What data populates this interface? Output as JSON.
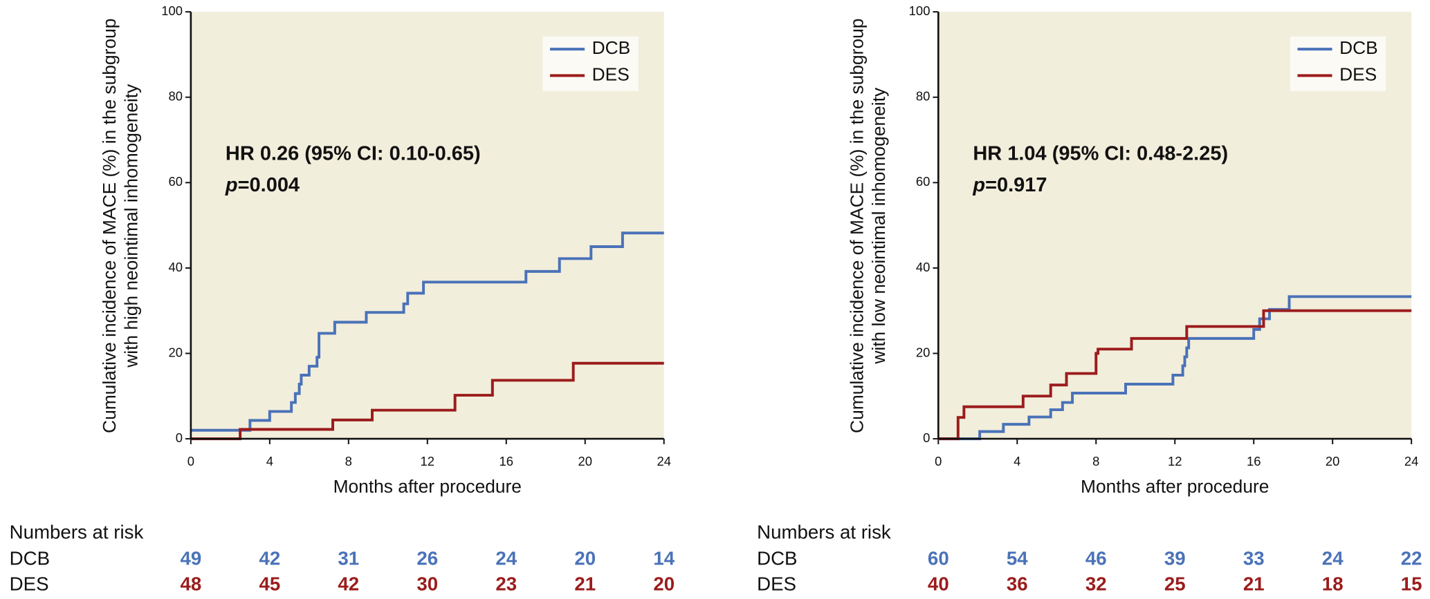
{
  "chart_data": [
    {
      "type": "line",
      "step": true,
      "legend": "upper right",
      "background": "#f2eedc",
      "y_label": [
        "Cumulative incidence of MACE (%) in the subgroup",
        "with high neointimal inhomogeneity"
      ],
      "x_label": "Months after procedure",
      "xlim": [
        0,
        24
      ],
      "xticks": [
        0,
        4,
        8,
        12,
        16,
        20,
        24
      ],
      "ylim": [
        0,
        100
      ],
      "yticks": [
        0,
        20,
        40,
        60,
        80,
        100
      ],
      "series": [
        {
          "name": "DCB",
          "color": "#4a72b8",
          "x": [
            0,
            3.0,
            4.0,
            5.1,
            5.3,
            5.5,
            5.6,
            6.0,
            6.4,
            6.5,
            7.3,
            8.9,
            10.8,
            11.0,
            11.8,
            17.0,
            18.7,
            20.3,
            21.9,
            24
          ],
          "values": [
            2.0,
            4.3,
            6.4,
            8.5,
            10.6,
            12.8,
            14.9,
            17.0,
            19.1,
            24.7,
            27.3,
            29.6,
            31.6,
            34.1,
            36.7,
            39.2,
            42.2,
            45.0,
            48.2,
            48.2
          ]
        },
        {
          "name": "DES",
          "color": "#9b1c1c",
          "x": [
            0,
            2.5,
            7.2,
            9.2,
            13.4,
            15.3,
            19.4,
            24
          ],
          "values": [
            0,
            2.2,
            4.4,
            6.7,
            10.2,
            13.7,
            17.7,
            17.7
          ]
        }
      ],
      "annotation": {
        "hr": "HR 0.26 (95% CI: 0.10-0.65)",
        "p_symbol": "p",
        "p_text": "=0.004"
      },
      "risk_table": {
        "title": "Numbers at risk",
        "rows": [
          {
            "name": "DCB",
            "color": "#4a72b8",
            "values": [
              49,
              42,
              31,
              26,
              24,
              20,
              14
            ]
          },
          {
            "name": "DES",
            "color": "#9b1c1c",
            "values": [
              48,
              45,
              42,
              30,
              23,
              21,
              20
            ]
          }
        ]
      }
    },
    {
      "type": "line",
      "step": true,
      "legend": "upper right",
      "background": "#f2eedc",
      "y_label": [
        "Cumulative incidence of MACE (%) in the subgroup",
        "with low neointimal inhomogeneity"
      ],
      "x_label": "Months after procedure",
      "xlim": [
        0,
        24
      ],
      "xticks": [
        0,
        4,
        8,
        12,
        16,
        20,
        24
      ],
      "ylim": [
        0,
        100
      ],
      "yticks": [
        0,
        20,
        40,
        60,
        80,
        100
      ],
      "series": [
        {
          "name": "DCB",
          "color": "#4a72b8",
          "x": [
            0,
            2.1,
            3.3,
            4.6,
            5.7,
            6.3,
            6.8,
            9.5,
            11.9,
            12.4,
            12.5,
            12.6,
            12.7,
            16.0,
            16.3,
            16.8,
            17.8,
            24
          ],
          "values": [
            0,
            1.7,
            3.4,
            5.1,
            6.8,
            8.5,
            10.7,
            12.8,
            14.9,
            17.1,
            19.2,
            21.3,
            23.5,
            25.6,
            28.1,
            30.3,
            33.3,
            33.3
          ]
        },
        {
          "name": "DES",
          "color": "#9b1c1c",
          "x": [
            0,
            1.0,
            1.3,
            4.3,
            5.7,
            6.5,
            8.0,
            8.1,
            9.8,
            12.6,
            16.5,
            24
          ],
          "values": [
            0,
            5.0,
            7.5,
            10.0,
            12.6,
            15.3,
            20.0,
            21.0,
            23.5,
            26.3,
            30.0,
            30.0
          ]
        }
      ],
      "annotation": {
        "hr": "HR 1.04 (95% CI: 0.48-2.25)",
        "p_symbol": "p",
        "p_text": "=0.917"
      },
      "risk_table": {
        "title": "Numbers at risk",
        "rows": [
          {
            "name": "DCB",
            "color": "#4a72b8",
            "values": [
              60,
              54,
              46,
              39,
              33,
              24,
              22
            ]
          },
          {
            "name": "DES",
            "color": "#9b1c1c",
            "values": [
              40,
              36,
              32,
              25,
              21,
              18,
              15
            ]
          }
        ]
      }
    }
  ]
}
